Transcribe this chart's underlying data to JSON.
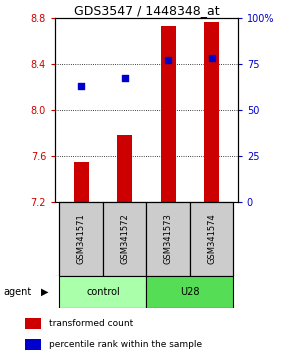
{
  "title": "GDS3547 / 1448348_at",
  "samples": [
    "GSM341571",
    "GSM341572",
    "GSM341573",
    "GSM341574"
  ],
  "bar_values": [
    7.55,
    7.78,
    8.73,
    8.76
  ],
  "percentile_values": [
    63,
    67,
    77,
    78
  ],
  "ylim_left": [
    7.2,
    8.8
  ],
  "ylim_right": [
    0,
    100
  ],
  "yticks_left": [
    7.2,
    7.6,
    8.0,
    8.4,
    8.8
  ],
  "yticks_right": [
    0,
    25,
    50,
    75,
    100
  ],
  "ytick_labels_right": [
    "0",
    "25",
    "50",
    "75",
    "100%"
  ],
  "bar_color": "#cc0000",
  "dot_color": "#0000cc",
  "bar_bottom": 7.2,
  "groups": [
    {
      "label": "control",
      "indices": [
        0,
        1
      ],
      "color": "#aaffaa"
    },
    {
      "label": "U28",
      "indices": [
        2,
        3
      ],
      "color": "#55dd55"
    }
  ],
  "agent_label": "agent",
  "legend_bar_label": "transformed count",
  "legend_dot_label": "percentile rank within the sample",
  "sample_box_color": "#cccccc",
  "sample_box_edge": "#000000"
}
